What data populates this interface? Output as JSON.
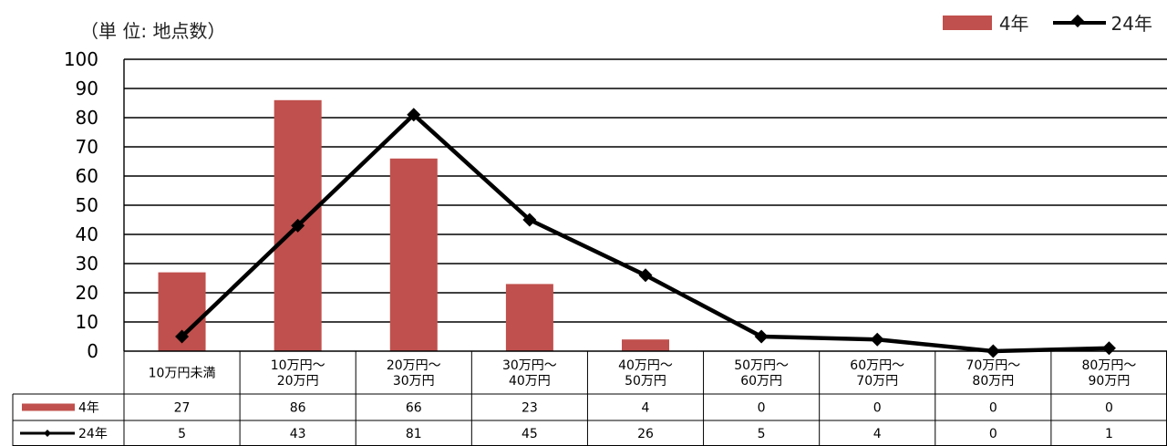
{
  "unit_label": "（単 位: 地点数）",
  "colors": {
    "bar": "#c0504d",
    "line": "#000000",
    "grid": "#000000"
  },
  "chart_data": {
    "type": "bar",
    "categories": [
      "10万円未満",
      "10万円〜\n20万円",
      "20万円〜\n30万円",
      "30万円〜\n40万円",
      "40万円〜\n50万円",
      "50万円〜\n60万円",
      "60万円〜\n70万円",
      "70万円〜\n80万円",
      "80万円〜\n90万円"
    ],
    "series": [
      {
        "name": "4年",
        "type": "bar",
        "values": [
          27,
          86,
          66,
          23,
          4,
          0,
          0,
          0,
          0
        ]
      },
      {
        "name": "24年",
        "type": "line",
        "values": [
          5,
          43,
          81,
          45,
          26,
          5,
          4,
          0,
          1
        ]
      }
    ],
    "ylim": [
      0,
      100
    ],
    "yticks": [
      0,
      10,
      20,
      30,
      40,
      50,
      60,
      70,
      80,
      90,
      100
    ],
    "grid": true,
    "legend": "top-right",
    "data_table": true
  }
}
